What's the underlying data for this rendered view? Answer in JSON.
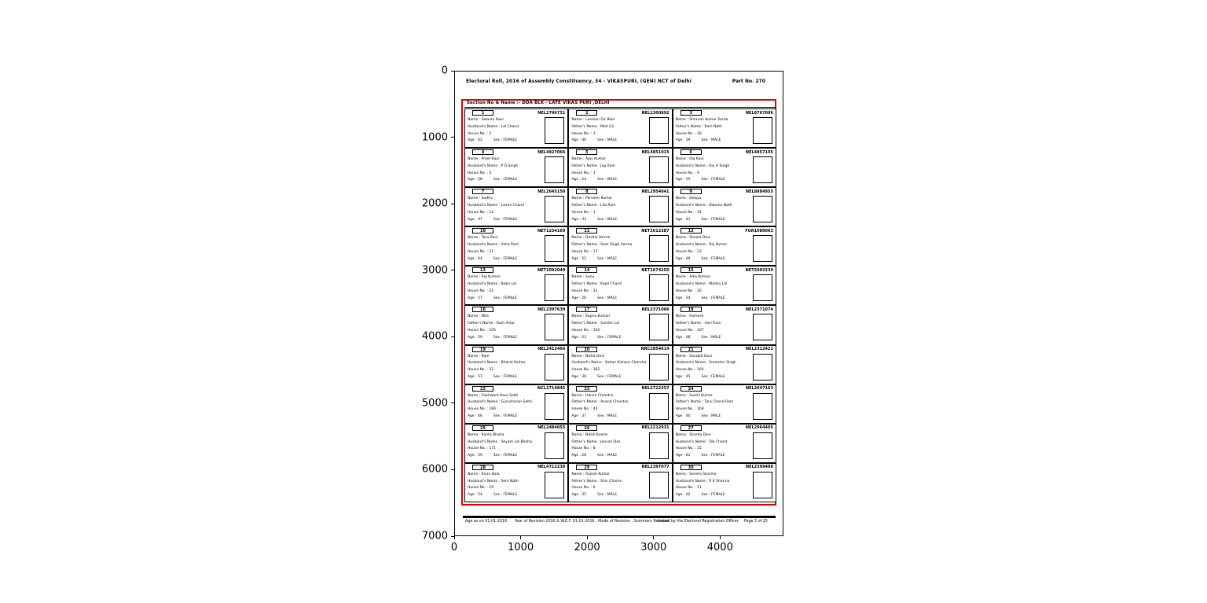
{
  "figure": {
    "y_ticks": [
      0,
      1000,
      2000,
      3000,
      4000,
      5000,
      6000,
      7000
    ],
    "x_ticks": [
      0,
      1000,
      2000,
      3000,
      4000
    ],
    "y_max": 7000,
    "x_max": 4954,
    "annotation_color": "#e00000"
  },
  "document": {
    "header": {
      "title": "Electoral Roll, 2016 of Assembly Constituency, 34 - VIKASPURI, (GEN) NCT of Delhi",
      "part_no": "Part No.  270"
    },
    "section_header": "Section No & Name :- DDA BLK - LATE VIKAS PURI ,DELHI",
    "cell_labels": {
      "name": "Name :",
      "father": "Father's Name :",
      "husband": "Husband's Name :",
      "house": "House No. :",
      "age": "Age :",
      "sex": "Sex :"
    },
    "footer": {
      "left": "Age as on 01-01-2016",
      "center": "Year of Revision 2016 & W.E.F. 01-01-2016 ; Mode of Revision : Summary Revision",
      "right": "Issued by the Electoral Registration Officer",
      "page": "Page 5 of 25"
    },
    "entries": [
      {
        "serial": "1",
        "epic": "NEL2796751",
        "name": "Swaran Kaur",
        "relation_label": "husband",
        "relation": "Lal Chand",
        "house": "2",
        "age": "62",
        "sex": "FEMALE"
      },
      {
        "serial": "2",
        "epic": "NEL2300892",
        "name": "Laxman Gir Bika",
        "relation_label": "father",
        "relation": "Moti Gir",
        "house": "3",
        "age": "46",
        "sex": "MALE"
      },
      {
        "serial": "3",
        "epic": "NEL8767096",
        "name": "Shravan Kumar Sarda",
        "relation_label": "father",
        "relation": "Ram Nath",
        "house": "18",
        "age": "39",
        "sex": "MALE"
      },
      {
        "serial": "4",
        "epic": "NEL4927066",
        "name": "Preet Kaur",
        "relation_label": "husband",
        "relation": "P D Singh",
        "house": "5",
        "age": "58",
        "sex": "FEMALE"
      },
      {
        "serial": "5",
        "epic": "NEL4851015",
        "name": "Ajay Kumar",
        "relation_label": "father",
        "relation": "Jag Ram",
        "house": "1",
        "age": "24",
        "sex": "MALE"
      },
      {
        "serial": "6",
        "epic": "NEL4857105",
        "name": "Raj Kaur",
        "relation_label": "husband",
        "relation": "Raj H Singh",
        "house": "9",
        "age": "55",
        "sex": "FEMALE"
      },
      {
        "serial": "7",
        "epic": "NEL2645150",
        "name": "Sudha",
        "relation_label": "husband",
        "relation": "Laxmi Chand",
        "house": "12",
        "age": "47",
        "sex": "FEMALE"
      },
      {
        "serial": "8",
        "epic": "NEL2954041",
        "name": "Parveen Kumar",
        "relation_label": "father",
        "relation": "Lila Ram",
        "house": "1",
        "age": "33",
        "sex": "MALE"
      },
      {
        "serial": "9",
        "epic": "NEL8884955",
        "name": "Deepa",
        "relation_label": "husband",
        "relation": "Dwarka Nath",
        "house": "14",
        "age": "41",
        "sex": "FEMALE"
      },
      {
        "serial": "10",
        "epic": "NET1234169",
        "name": "Tara Devi",
        "relation_label": "husband",
        "relation": "Asha Ram",
        "house": "21",
        "age": "64",
        "sex": "FEMALE"
      },
      {
        "serial": "11",
        "epic": "NET2612387",
        "name": "Devilal Verma",
        "relation_label": "father",
        "relation": "Sant Singh Verma",
        "house": "17",
        "age": "52",
        "sex": "MALE"
      },
      {
        "serial": "12",
        "epic": "FGR1089063",
        "name": "Sheela Devi",
        "relation_label": "husband",
        "relation": "Raj Kumar",
        "house": "23",
        "age": "49",
        "sex": "FEMALE"
      },
      {
        "serial": "13",
        "epic": "NET2092049",
        "name": "Raj Kumari",
        "relation_label": "husband",
        "relation": "Babu Lal",
        "house": "22",
        "age": "57",
        "sex": "FEMALE"
      },
      {
        "serial": "14",
        "epic": "NET2674250",
        "name": "Sonu",
        "relation_label": "father",
        "relation": "Kapil Chand",
        "house": "31",
        "age": "26",
        "sex": "MALE"
      },
      {
        "serial": "15",
        "epic": "NET2093239",
        "name": "Alka Kumari",
        "relation_label": "husband",
        "relation": "Madan Lal",
        "house": "16",
        "age": "44",
        "sex": "FEMALE"
      },
      {
        "serial": "16",
        "epic": "NEL2397639",
        "name": "Nita",
        "relation_label": "father",
        "relation": "Ram Avtar",
        "house": "105",
        "age": "29",
        "sex": "FEMALE"
      },
      {
        "serial": "17",
        "epic": "NEL2371066",
        "name": "Sapna Kumari",
        "relation_label": "father",
        "relation": "Sunder Lal",
        "house": "150",
        "age": "23",
        "sex": "FEMALE"
      },
      {
        "serial": "18",
        "epic": "NEL2371074",
        "name": "Ramesh",
        "relation_label": "father",
        "relation": "Hari Ram",
        "house": "107",
        "age": "48",
        "sex": "MALE"
      },
      {
        "serial": "19",
        "epic": "NEL2412466",
        "name": "Rani",
        "relation_label": "husband",
        "relation": "Bharat Kumar",
        "house": "32",
        "age": "51",
        "sex": "FEMALE"
      },
      {
        "serial": "20",
        "epic": "NRC2854614",
        "name": "Nisha Devi",
        "relation_label": "husband",
        "relation": "Sohan Kishore Chandra",
        "house": "162",
        "age": "36",
        "sex": "FEMALE"
      },
      {
        "serial": "21",
        "epic": "NEL2312421",
        "name": "Sarabjit Kaur",
        "relation_label": "husband",
        "relation": "Surender Singh",
        "house": "164",
        "age": "45",
        "sex": "FEMALE"
      },
      {
        "serial": "22",
        "epic": "NCL2714845",
        "name": "Sukhwant Kaur Sethi",
        "relation_label": "husband",
        "relation": "Gurucharan Sethi",
        "house": "166",
        "age": "66",
        "sex": "FEMALE"
      },
      {
        "serial": "23",
        "epic": "NEL2722357",
        "name": "Harish Chandra",
        "relation_label": "father",
        "relation": "Anand Chandra",
        "house": "43",
        "age": "37",
        "sex": "MALE"
      },
      {
        "serial": "24",
        "epic": "NEL2647163",
        "name": "Sushil Kumar",
        "relation_label": "father",
        "relation": "Tara Chand Ram",
        "house": "169",
        "age": "40",
        "sex": "MALE"
      },
      {
        "serial": "25",
        "epic": "NEL2484055",
        "name": "Kanta Bhatia",
        "relation_label": "husband",
        "relation": "Shyam Lal Bhatia",
        "house": "171",
        "age": "59",
        "sex": "FEMALE"
      },
      {
        "serial": "26",
        "epic": "NEL2212931",
        "name": "Nikhil Kumar",
        "relation_label": "father",
        "relation": "Jeevan Das",
        "house": "8",
        "age": "28",
        "sex": "MALE"
      },
      {
        "serial": "27",
        "epic": "NEL2964405",
        "name": "Sharda Devi",
        "relation_label": "husband",
        "relation": "Tek Chand",
        "house": "15",
        "age": "61",
        "sex": "FEMALE"
      },
      {
        "serial": "28",
        "epic": "NEL4712230",
        "name": "Kiran Bala",
        "relation_label": "husband",
        "relation": "Som Nath",
        "house": "19",
        "age": "54",
        "sex": "FEMALE"
      },
      {
        "serial": "29",
        "epic": "NEL2397077",
        "name": "Rajesh Kumar",
        "relation_label": "father",
        "relation": "Shiv Charan",
        "house": "6",
        "age": "35",
        "sex": "MALE"
      },
      {
        "serial": "30",
        "epic": "NEL2399488",
        "name": "Seema Sharma",
        "relation_label": "husband",
        "relation": "R K Sharma",
        "house": "11",
        "age": "42",
        "sex": "FEMALE"
      }
    ]
  }
}
